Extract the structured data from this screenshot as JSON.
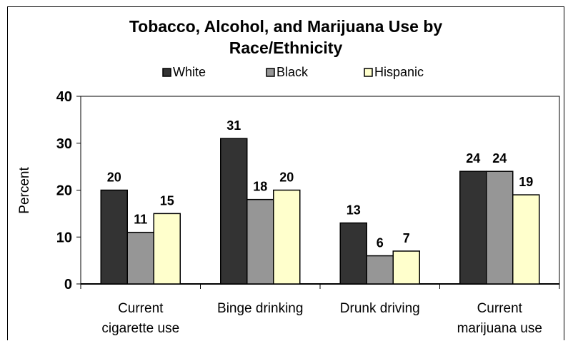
{
  "chart_data": {
    "type": "bar",
    "title_lines": [
      "Tobacco, Alcohol, and Marijuana Use by",
      "Race/Ethnicity"
    ],
    "ylabel": "Percent",
    "xlabel": "",
    "ylim": [
      0,
      40
    ],
    "yticks": [
      "0",
      "10",
      "20",
      "30",
      "40"
    ],
    "categories": [
      [
        "Current",
        "cigarette use"
      ],
      [
        "Binge drinking"
      ],
      [
        "Drunk driving"
      ],
      [
        "Current",
        "marijuana use"
      ]
    ],
    "series": [
      {
        "name": "White",
        "color": "#333333",
        "values": [
          20,
          31,
          13,
          24
        ]
      },
      {
        "name": "Black",
        "color": "#969696",
        "values": [
          11,
          18,
          6,
          24
        ]
      },
      {
        "name": "Hispanic",
        "color": "#ffffcc",
        "values": [
          15,
          20,
          7,
          19
        ]
      }
    ],
    "legend_position": "top",
    "grid": false
  }
}
